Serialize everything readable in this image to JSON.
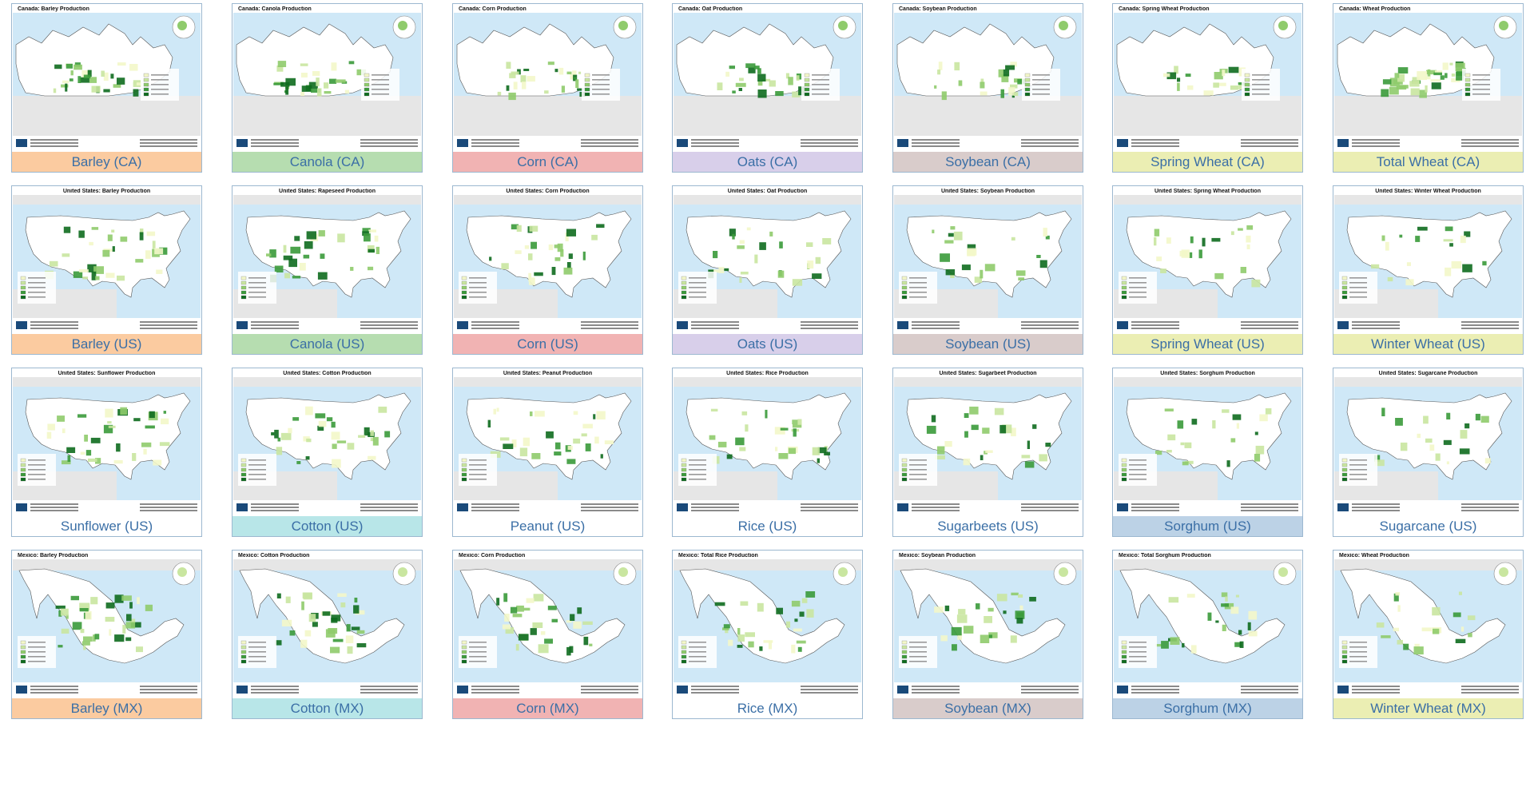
{
  "colors": {
    "barley": "#fbcba0",
    "canola": "#b6ddb0",
    "corn": "#f1b3b3",
    "oats": "#d8cfea",
    "soybean": "#d9cccb",
    "wheat": "#ebeeb3",
    "cotton": "#b8e6e8",
    "sorghum": "#bcd2e6",
    "none": "#ffffff"
  },
  "rows": [
    {
      "tiles": [
        {
          "map_title": "Canada: Barley Production",
          "caption": "Barley (CA)",
          "color": "barley",
          "kind": "ca"
        },
        {
          "map_title": "Canada: Canola Production",
          "caption": "Canola (CA)",
          "color": "canola",
          "kind": "ca"
        },
        {
          "map_title": "Canada: Corn Production",
          "caption": "Corn (CA)",
          "color": "corn",
          "kind": "ca"
        },
        {
          "map_title": "Canada: Oat Production",
          "caption": "Oats (CA)",
          "color": "oats",
          "kind": "ca"
        },
        {
          "map_title": "Canada: Soybean Production",
          "caption": "Soybean (CA)",
          "color": "soybean",
          "kind": "ca"
        },
        {
          "map_title": "Canada: Spring Wheat Production",
          "caption": "Spring Wheat (CA)",
          "color": "wheat",
          "kind": "ca"
        },
        {
          "map_title": "Canada: Wheat Production",
          "caption": "Total Wheat (CA)",
          "color": "wheat",
          "kind": "ca"
        }
      ]
    },
    {
      "tiles": [
        {
          "map_title": "United States: Barley Production",
          "caption": "Barley (US)",
          "color": "barley",
          "kind": "us"
        },
        {
          "map_title": "United States: Rapeseed Production",
          "caption": "Canola (US)",
          "color": "canola",
          "kind": "us"
        },
        {
          "map_title": "United States: Corn Production",
          "caption": "Corn (US)",
          "color": "corn",
          "kind": "us"
        },
        {
          "map_title": "United States: Oat Production",
          "caption": "Oats (US)",
          "color": "oats",
          "kind": "us"
        },
        {
          "map_title": "United States: Soybean Production",
          "caption": "Soybean (US)",
          "color": "soybean",
          "kind": "us"
        },
        {
          "map_title": "United States: Spring Wheat Production",
          "caption": "Spring Wheat (US)",
          "color": "wheat",
          "kind": "us"
        },
        {
          "map_title": "United States: Winter Wheat Production",
          "caption": "Winter Wheat (US)",
          "color": "wheat",
          "kind": "us"
        }
      ]
    },
    {
      "tiles": [
        {
          "map_title": "United States: Sunflower Production",
          "caption": "Sunflower (US)",
          "color": "none",
          "kind": "us"
        },
        {
          "map_title": "United States: Cotton Production",
          "caption": "Cotton (US)",
          "color": "cotton",
          "kind": "us"
        },
        {
          "map_title": "United States: Peanut Production",
          "caption": "Peanut (US)",
          "color": "none",
          "kind": "us"
        },
        {
          "map_title": "United States: Rice Production",
          "caption": "Rice (US)",
          "color": "none",
          "kind": "us"
        },
        {
          "map_title": "United States: Sugarbeet Production",
          "caption": "Sugarbeets (US)",
          "color": "none",
          "kind": "us"
        },
        {
          "map_title": "United States: Sorghum Production",
          "caption": "Sorghum (US)",
          "color": "sorghum",
          "kind": "us"
        },
        {
          "map_title": "United States: Sugarcane Production",
          "caption": "Sugarcane (US)",
          "color": "none",
          "kind": "us"
        }
      ]
    },
    {
      "tiles": [
        {
          "map_title": "Mexico: Barley Production",
          "caption": "Barley (MX)",
          "color": "barley",
          "kind": "mx"
        },
        {
          "map_title": "Mexico: Cotton Production",
          "caption": "Cotton (MX)",
          "color": "cotton",
          "kind": "mx"
        },
        {
          "map_title": "Mexico: Corn Production",
          "caption": "Corn (MX)",
          "color": "corn",
          "kind": "mx"
        },
        {
          "map_title": "Mexico: Total Rice Production",
          "caption": "Rice (MX)",
          "color": "none",
          "kind": "mx"
        },
        {
          "map_title": "Mexico: Soybean Production",
          "caption": "Soybean (MX)",
          "color": "soybean",
          "kind": "mx"
        },
        {
          "map_title": "Mexico: Total Sorghum Production",
          "caption": "Sorghum (MX)",
          "color": "sorghum",
          "kind": "mx"
        },
        {
          "map_title": "Mexico: Wheat Production",
          "caption": "Winter Wheat (MX)",
          "color": "wheat",
          "kind": "mx"
        }
      ]
    }
  ]
}
